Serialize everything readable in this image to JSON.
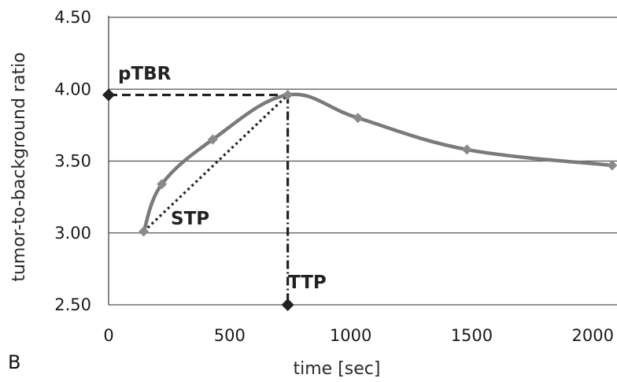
{
  "chart_data": {
    "type": "line",
    "panel_label": "B",
    "xlabel": "time [sec]",
    "ylabel": "tumor-to-background ratio",
    "xlim": [
      0,
      2100
    ],
    "ylim": [
      2.5,
      4.5
    ],
    "x_ticks": [
      0,
      500,
      1000,
      1500,
      2000
    ],
    "y_ticks": [
      "2.50",
      "3.00",
      "3.50",
      "4.00",
      "4.50"
    ],
    "grid": "horizontal",
    "series": [
      {
        "x": [
          145,
          220,
          430,
          740,
          1030,
          1480,
          2080
        ],
        "y": [
          3.01,
          3.34,
          3.65,
          3.96,
          3.8,
          3.58,
          3.47
        ],
        "color": "#7a7a7a"
      }
    ],
    "annotations": {
      "pTBR": {
        "label": "pTBR",
        "x": 0,
        "y": 3.96
      },
      "TTP": {
        "label": "TTP",
        "x": 740,
        "y": 2.5
      },
      "STP": {
        "label": "STP",
        "x0": 145,
        "y0": 3.01,
        "x1": 740,
        "y1": 3.96
      }
    },
    "colors": {
      "line": "#7a7a7a",
      "marker": "#8a8a8a",
      "annotation": "#222222",
      "grid": "#555555"
    }
  }
}
